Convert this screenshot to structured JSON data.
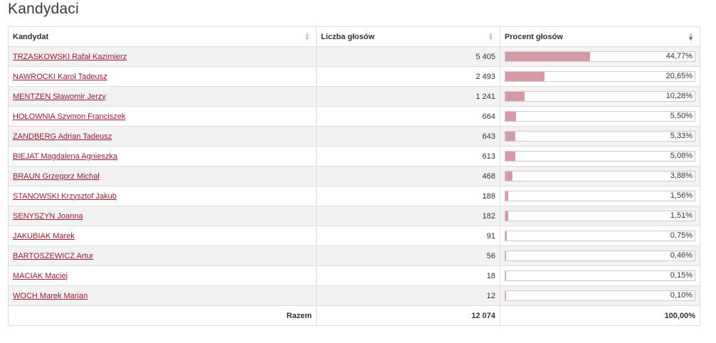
{
  "page": {
    "title": "Kandydaci"
  },
  "table": {
    "headers": {
      "candidate": "Kandydat",
      "votes": "Liczba głosów",
      "percent": "Procent głosów"
    },
    "sort": {
      "column": "percent",
      "direction": "desc"
    },
    "bar_color": "#d49aa6",
    "rows": [
      {
        "name": "TRZASKOWSKI Rafał Kazimierz",
        "votes": "5 405",
        "percent_label": "44,77%",
        "percent": 44.77
      },
      {
        "name": "NAWROCKI Karol Tadeusz",
        "votes": "2 493",
        "percent_label": "20,65%",
        "percent": 20.65
      },
      {
        "name": "MENTZEN Sławomir Jerzy",
        "votes": "1 241",
        "percent_label": "10,28%",
        "percent": 10.28
      },
      {
        "name": "HOŁOWNIA Szymon Franciszek",
        "votes": "664",
        "percent_label": "5,50%",
        "percent": 5.5
      },
      {
        "name": "ZANDBERG Adrian Tadeusz",
        "votes": "643",
        "percent_label": "5,33%",
        "percent": 5.33
      },
      {
        "name": "BIEJAT Magdalena Agnieszka",
        "votes": "613",
        "percent_label": "5,08%",
        "percent": 5.08
      },
      {
        "name": "BRAUN Grzegorz Michał",
        "votes": "468",
        "percent_label": "3,88%",
        "percent": 3.88
      },
      {
        "name": "STANOWSKI Krzysztof Jakub",
        "votes": "188",
        "percent_label": "1,56%",
        "percent": 1.56
      },
      {
        "name": "SENYSZYN Joanna",
        "votes": "182",
        "percent_label": "1,51%",
        "percent": 1.51
      },
      {
        "name": "JAKUBIAK Marek",
        "votes": "91",
        "percent_label": "0,75%",
        "percent": 0.75
      },
      {
        "name": "BARTOSZEWICZ Artur",
        "votes": "56",
        "percent_label": "0,46%",
        "percent": 0.46
      },
      {
        "name": "MACIAK Maciej",
        "votes": "18",
        "percent_label": "0,15%",
        "percent": 0.15
      },
      {
        "name": "WOCH Marek Marian",
        "votes": "12",
        "percent_label": "0,10%",
        "percent": 0.1
      }
    ],
    "total": {
      "label": "Razem",
      "votes": "12 074",
      "percent": "100,00%"
    }
  }
}
